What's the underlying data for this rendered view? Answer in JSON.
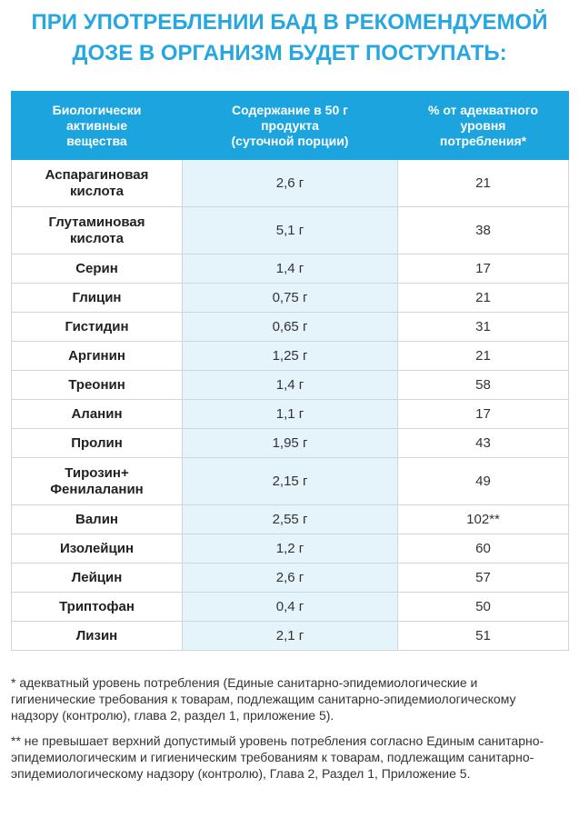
{
  "header": {
    "title": "ПРИ УПОТРЕБЛЕНИИ БАД В РЕКОМЕНДУЕМОЙ\nДОЗЕ В ОРГАНИЗМ БУДЕТ ПОСТУПАТЬ:"
  },
  "table": {
    "columns": [
      "Биологически\nактивные\nвещества",
      "Содержание в 50 г\nпродукта\n(суточной порции)",
      "% от адекватного\nуровня\nпотребления*"
    ],
    "rows": [
      [
        "Аспарагиновая\nкислота",
        "2,6 г",
        "21"
      ],
      [
        "Глутаминовая\nкислота",
        "5,1 г",
        "38"
      ],
      [
        "Серин",
        "1,4 г",
        "17"
      ],
      [
        "Глицин",
        "0,75 г",
        "21"
      ],
      [
        "Гистидин",
        "0,65 г",
        "31"
      ],
      [
        "Аргинин",
        "1,25 г",
        "21"
      ],
      [
        "Треонин",
        "1,4 г",
        "58"
      ],
      [
        "Аланин",
        "1,1 г",
        "17"
      ],
      [
        "Пролин",
        "1,95 г",
        "43"
      ],
      [
        "Тирозин+\nФенилаланин",
        "2,15 г",
        "49"
      ],
      [
        "Валин",
        "2,55 г",
        "102**"
      ],
      [
        "Изолейцин",
        "1,2 г",
        "60"
      ],
      [
        "Лейцин",
        "2,6 г",
        "57"
      ],
      [
        "Триптофан",
        "0,4 г",
        "50"
      ],
      [
        "Лизин",
        "2,1 г",
        "51"
      ]
    ]
  },
  "notes": [
    "* адекватный уровень потребления (Единые санитарно-эпидемиологические и гигиенические требования к товарам, подлежащим санитарно-эпидемиологическому надзору (контролю), глава 2, раздел 1, приложение 5).",
    "** не превышает верхний допустимый уровень потребления согласно Единым санитарно-эпидемиологическим и гигиеническим требованиям к товарам, подлежащим санитарно-эпидемиологическому надзору (контролю), Глава 2, Раздел 1, Приложение 5."
  ]
}
